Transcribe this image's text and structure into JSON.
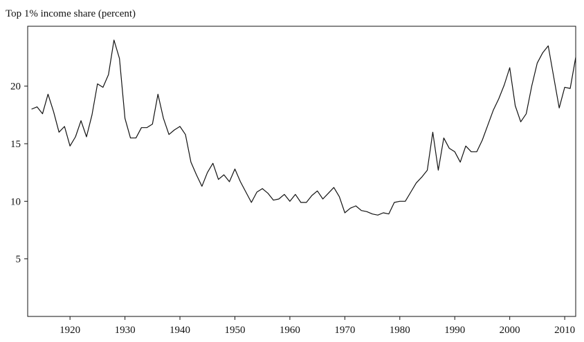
{
  "chart_data": {
    "type": "line",
    "title": "Top 1% income share (percent)",
    "x": [
      1913,
      1914,
      1915,
      1916,
      1917,
      1918,
      1919,
      1920,
      1921,
      1922,
      1923,
      1924,
      1925,
      1926,
      1927,
      1928,
      1929,
      1930,
      1931,
      1932,
      1933,
      1934,
      1935,
      1936,
      1937,
      1938,
      1939,
      1940,
      1941,
      1942,
      1943,
      1944,
      1945,
      1946,
      1947,
      1948,
      1949,
      1950,
      1951,
      1952,
      1953,
      1954,
      1955,
      1956,
      1957,
      1958,
      1959,
      1960,
      1961,
      1962,
      1963,
      1964,
      1965,
      1966,
      1967,
      1968,
      1969,
      1970,
      1971,
      1972,
      1973,
      1974,
      1975,
      1976,
      1977,
      1978,
      1979,
      1980,
      1981,
      1982,
      1983,
      1984,
      1985,
      1986,
      1987,
      1988,
      1989,
      1990,
      1991,
      1992,
      1993,
      1994,
      1995,
      1996,
      1997,
      1998,
      1999,
      2000,
      2001,
      2002,
      2003,
      2004,
      2005,
      2006,
      2007,
      2008,
      2009,
      2010,
      2011,
      2012
    ],
    "values": [
      18.0,
      18.2,
      17.6,
      19.3,
      17.8,
      16.0,
      16.5,
      14.8,
      15.6,
      17.0,
      15.6,
      17.5,
      20.2,
      19.9,
      21.0,
      24.0,
      22.4,
      17.2,
      15.5,
      15.5,
      16.4,
      16.4,
      16.7,
      19.3,
      17.2,
      15.8,
      16.2,
      16.5,
      15.8,
      13.4,
      12.3,
      11.3,
      12.5,
      13.3,
      11.9,
      12.3,
      11.7,
      12.8,
      11.7,
      10.8,
      9.9,
      10.8,
      11.1,
      10.7,
      10.1,
      10.2,
      10.6,
      10.0,
      10.6,
      9.9,
      9.9,
      10.5,
      10.9,
      10.2,
      10.7,
      11.2,
      10.4,
      9.0,
      9.4,
      9.6,
      9.2,
      9.1,
      8.9,
      8.8,
      9.0,
      8.9,
      9.9,
      10.0,
      10.0,
      10.8,
      11.6,
      12.1,
      12.7,
      16.0,
      12.7,
      15.5,
      14.6,
      14.3,
      13.4,
      14.8,
      14.3,
      14.3,
      15.3,
      16.6,
      17.9,
      18.9,
      20.1,
      21.6,
      18.3,
      16.9,
      17.6,
      20.0,
      22.0,
      22.9,
      23.5,
      20.8,
      18.1,
      19.9,
      19.8,
      22.5
    ],
    "color": "#111111",
    "xlim": [
      1912.3,
      2012
    ],
    "xticks": [
      1920,
      1930,
      1940,
      1950,
      1960,
      1970,
      1980,
      1990,
      2000,
      2010
    ],
    "ylim": [
      0,
      25.2
    ],
    "yticks": [
      5,
      10,
      15,
      20
    ]
  }
}
